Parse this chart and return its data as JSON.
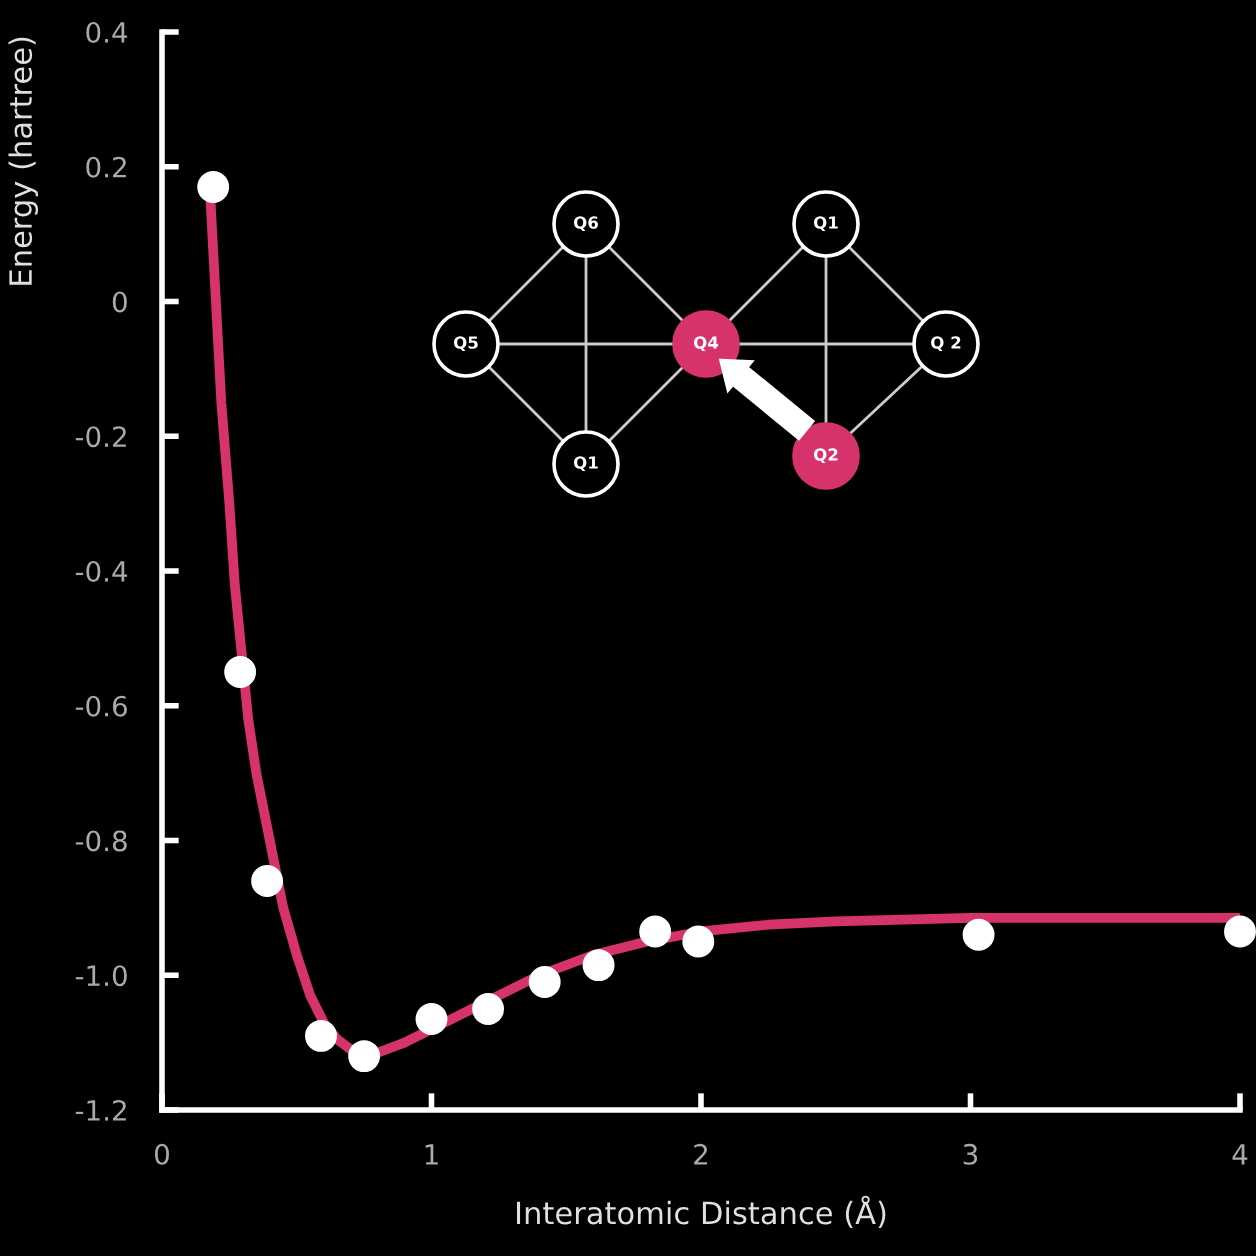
{
  "chart_data": {
    "type": "scatter",
    "xlabel": "Interatomic Distance (Å)",
    "ylabel": "Energy (hartree)",
    "xlim": [
      0,
      4
    ],
    "ylim": [
      -1.2,
      0.4
    ],
    "xticks": [
      0,
      1,
      2,
      3,
      4
    ],
    "yticks": [
      {
        "value": -1.2,
        "label": "-1.2"
      },
      {
        "value": -1.0,
        "label": "-1.0"
      },
      {
        "value": -0.8,
        "label": "-0.8"
      },
      {
        "value": -0.6,
        "label": "-0.6"
      },
      {
        "value": -0.4,
        "label": "-0.4"
      },
      {
        "value": -0.2,
        "label": "-0.2"
      },
      {
        "value": 0,
        "label": "0"
      },
      {
        "value": 0.2,
        "label": "0.2"
      },
      {
        "value": 0.4,
        "label": "0.4"
      }
    ],
    "grid": false,
    "legend": false,
    "series": [
      {
        "type": "line",
        "marker": "none",
        "color": "#d6336c",
        "x": [
          0.18,
          0.2,
          0.22,
          0.25,
          0.27,
          0.32,
          0.35,
          0.4,
          0.45,
          0.5,
          0.55,
          0.6,
          0.65,
          0.7,
          0.75,
          0.8,
          0.9,
          1.0,
          1.2,
          1.4,
          1.6,
          1.8,
          2.0,
          2.25,
          2.5,
          3.0,
          4.0
        ],
        "values": [
          0.15,
          0.0,
          -0.15,
          -0.3,
          -0.42,
          -0.62,
          -0.7,
          -0.8,
          -0.9,
          -0.97,
          -1.03,
          -1.07,
          -1.095,
          -1.11,
          -1.115,
          -1.115,
          -1.1,
          -1.08,
          -1.04,
          -1.0,
          -0.97,
          -0.95,
          -0.935,
          -0.925,
          -0.92,
          -0.915,
          -0.915
        ]
      },
      {
        "marker": "circle",
        "color": "#ffffff",
        "x": [
          0.19,
          0.29,
          0.39,
          0.59,
          0.75,
          1.0,
          1.21,
          1.42,
          1.62,
          1.83,
          1.99,
          3.03,
          4.0
        ],
        "values": [
          0.17,
          -0.55,
          -0.86,
          -1.09,
          -1.12,
          -1.065,
          -1.05,
          -1.01,
          -0.985,
          -0.935,
          -0.95,
          -0.94,
          -0.935
        ]
      }
    ],
    "annotations": [
      "Q6",
      "Q5",
      "Q1",
      "Q4",
      "Q1",
      "Q 2",
      "Q2"
    ]
  }
}
